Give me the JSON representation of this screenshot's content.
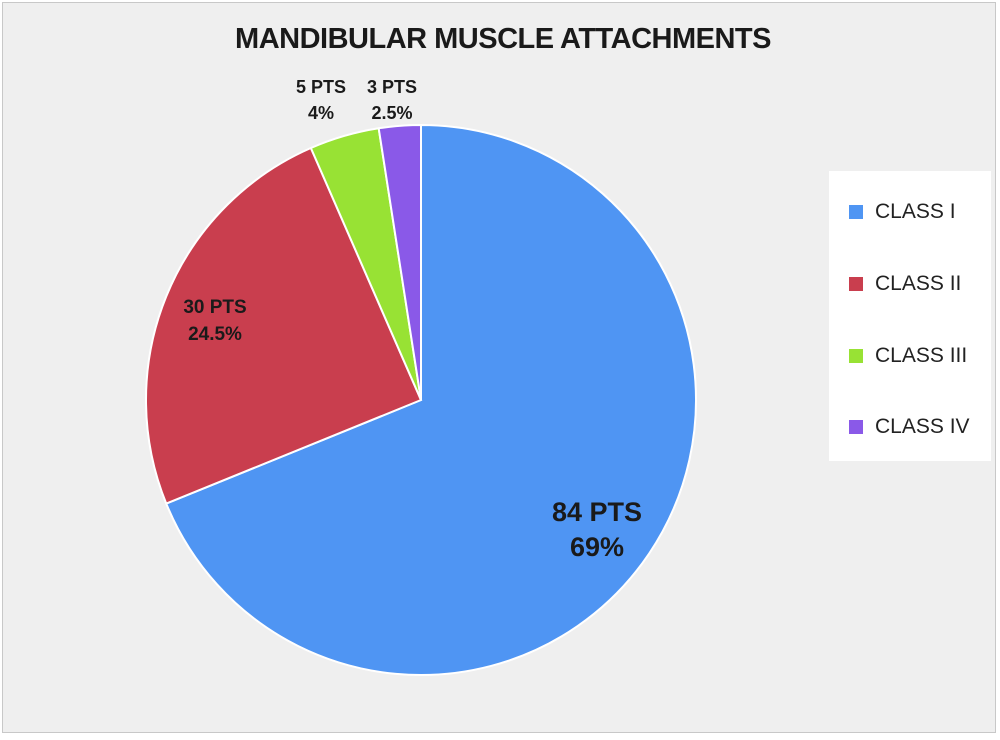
{
  "chart_data": {
    "type": "pie",
    "title": "MANDIBULAR MUSCLE ATTACHMENTS",
    "categories": [
      "CLASS I",
      "CLASS II",
      "CLASS III",
      "CLASS IV"
    ],
    "values": [
      84,
      30,
      5,
      3
    ],
    "percentages": [
      "69%",
      "24.5%",
      "4%",
      "2.5%"
    ],
    "data_labels": [
      {
        "count": "84 PTS",
        "percent": "69%"
      },
      {
        "count": "30 PTS",
        "percent": "24.5%"
      },
      {
        "count": "5 PTS",
        "percent": "4%"
      },
      {
        "count": "3 PTS",
        "percent": "2.5%"
      }
    ],
    "colors": [
      "#4f95f3",
      "#c93e4e",
      "#98e234",
      "#8a59e8"
    ],
    "legend_position": "right",
    "start_angle": "12 o'clock",
    "direction": "clockwise"
  }
}
